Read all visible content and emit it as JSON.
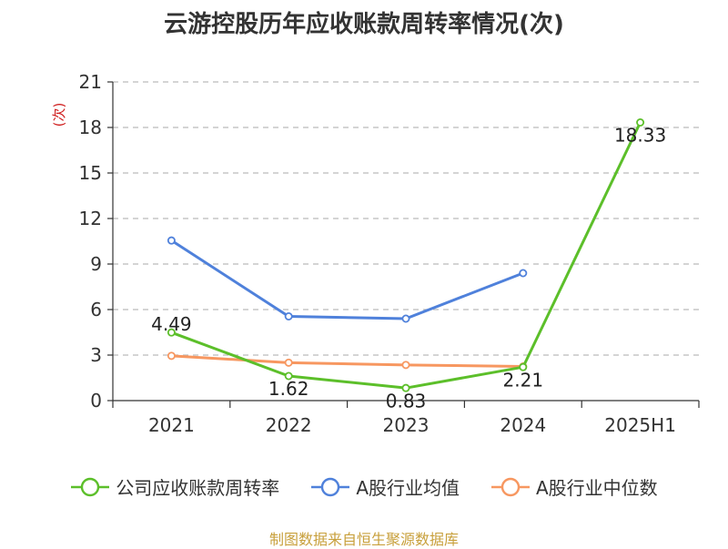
{
  "chart_data": {
    "type": "line",
    "title": "云游控股历年应收账款周转率情况(次)",
    "ylabel": "(次)",
    "xlabel": "",
    "categories": [
      "2021",
      "2022",
      "2023",
      "2024",
      "2025H1"
    ],
    "ylim": [
      0,
      21
    ],
    "yticks": [
      0,
      3,
      6,
      9,
      12,
      15,
      18,
      21
    ],
    "grid": true,
    "legend_position": "bottom",
    "series": [
      {
        "name": "公司应收账款周转率",
        "color": "#5cbf2a",
        "values": [
          4.49,
          1.62,
          0.83,
          2.21,
          18.33
        ],
        "labels": [
          "4.49",
          "1.62",
          "0.83",
          "2.21",
          "18.33"
        ]
      },
      {
        "name": "A股行业均值",
        "color": "#4f81db",
        "values": [
          10.55,
          5.55,
          5.4,
          8.4,
          null
        ]
      },
      {
        "name": "A股行业中位数",
        "color": "#f79760",
        "values": [
          2.95,
          2.5,
          2.35,
          2.25,
          null
        ]
      }
    ]
  },
  "footer": "制图数据来自恒生聚源数据库"
}
